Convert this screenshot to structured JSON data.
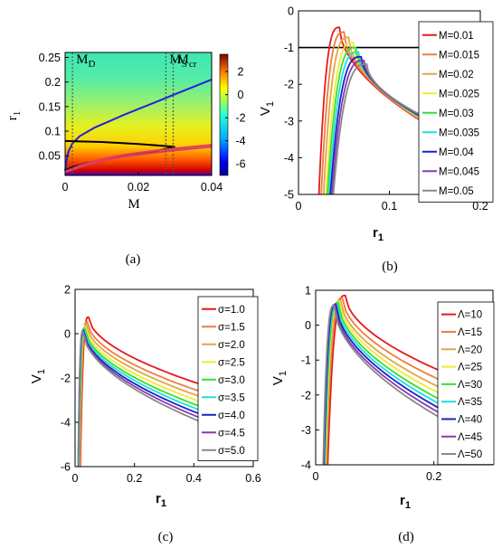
{
  "chart_data": [
    {
      "panel": "a",
      "caption": "(a)",
      "type": "heatmap",
      "xlabel": "M",
      "ylabel": "r",
      "ylabel_sub": "1",
      "xlim": [
        0,
        0.04
      ],
      "ylim": [
        0.01,
        0.26
      ],
      "xticks": [
        "0",
        "0.02",
        "0.04"
      ],
      "yticks": [
        "0.05",
        "0.1",
        "0.15",
        "0.2",
        "0.25"
      ],
      "colorbar": {
        "min": -7,
        "max": 3.5,
        "ticks": [
          "2",
          "0",
          "-2",
          "-4",
          "-6"
        ]
      },
      "vlines": [
        {
          "x": 0.002,
          "label": "M",
          "sub": "D"
        },
        {
          "x": 0.0275,
          "label": "M",
          "sub": "S"
        },
        {
          "x": 0.0295,
          "label": "M",
          "sub": "cr"
        }
      ],
      "curves": [
        {
          "color": "#2222dd",
          "points": [
            [
              0,
              0.02
            ],
            [
              0.0005,
              0.045
            ],
            [
              0.001,
              0.06
            ],
            [
              0.002,
              0.075
            ],
            [
              0.004,
              0.09
            ],
            [
              0.008,
              0.107
            ],
            [
              0.012,
              0.12
            ],
            [
              0.016,
              0.133
            ],
            [
              0.02,
              0.145
            ],
            [
              0.025,
              0.16
            ],
            [
              0.03,
              0.175
            ],
            [
              0.035,
              0.19
            ],
            [
              0.04,
              0.205
            ]
          ]
        },
        {
          "color": "#000000",
          "points": [
            [
              0,
              0.08
            ],
            [
              0.005,
              0.079
            ],
            [
              0.01,
              0.078
            ],
            [
              0.015,
              0.076
            ],
            [
              0.02,
              0.074
            ],
            [
              0.025,
              0.071
            ],
            [
              0.03,
              0.068
            ]
          ]
        },
        {
          "color": "#000000",
          "points": [
            [
              0,
              0.02
            ],
            [
              0.002,
              0.027
            ],
            [
              0.006,
              0.035
            ],
            [
              0.01,
              0.041
            ],
            [
              0.015,
              0.048
            ],
            [
              0.02,
              0.054
            ],
            [
              0.025,
              0.06
            ],
            [
              0.03,
              0.068
            ]
          ]
        },
        {
          "color": "#e03c5c",
          "points": [
            [
              0,
              0.018
            ],
            [
              0.004,
              0.03
            ],
            [
              0.01,
              0.043
            ],
            [
              0.016,
              0.052
            ],
            [
              0.022,
              0.058
            ],
            [
              0.03,
              0.065
            ],
            [
              0.04,
              0.072
            ]
          ]
        },
        {
          "color": "#e03c5c",
          "points": [
            [
              0,
              0.016
            ],
            [
              0.004,
              0.027
            ],
            [
              0.01,
              0.04
            ],
            [
              0.016,
              0.048
            ],
            [
              0.022,
              0.054
            ],
            [
              0.03,
              0.061
            ],
            [
              0.04,
              0.068
            ]
          ]
        }
      ]
    },
    {
      "panel": "b",
      "caption": "(b)",
      "type": "line",
      "xlabel": "r",
      "xlabel_sub": "1",
      "ylabel": "V",
      "ylabel_sub": "1",
      "xlim": [
        0,
        0.2
      ],
      "ylim": [
        -5,
        0
      ],
      "xticks": [
        "0",
        "0.1",
        "0.2"
      ],
      "yticks": [
        "0",
        "-1",
        "-2",
        "-3",
        "-4",
        "-5"
      ],
      "hline": -1,
      "series": [
        {
          "name": "M=0.01",
          "color": "#e8191c",
          "peak": [
            0.045,
            -0.45
          ]
        },
        {
          "name": "M=0.015",
          "color": "#ef7d3a",
          "peak": [
            0.05,
            -0.58
          ]
        },
        {
          "name": "M=0.02",
          "color": "#e2a54a",
          "peak": [
            0.055,
            -0.72
          ]
        },
        {
          "name": "M=0.025",
          "color": "#f2ea30",
          "peak": [
            0.06,
            -0.86
          ]
        },
        {
          "name": "M=0.03",
          "color": "#33e030",
          "peak": [
            0.063,
            -1.0
          ]
        },
        {
          "name": "M=0.035",
          "color": "#1edede",
          "peak": [
            0.066,
            -1.12
          ]
        },
        {
          "name": "M=0.04",
          "color": "#1622c8",
          "peak": [
            0.069,
            -1.25
          ]
        },
        {
          "name": "M=0.045",
          "color": "#8a3ab0",
          "peak": [
            0.072,
            -1.35
          ]
        },
        {
          "name": "M=0.05",
          "color": "#888888",
          "peak": [
            0.075,
            -1.45
          ]
        }
      ]
    },
    {
      "panel": "c",
      "caption": "(c)",
      "type": "line",
      "xlabel": "r",
      "xlabel_sub": "1",
      "ylabel": "V",
      "ylabel_sub": "1",
      "xlim": [
        0,
        0.6
      ],
      "ylim": [
        -6,
        2
      ],
      "xticks": [
        "0",
        "0.2",
        "0.4",
        "0.6"
      ],
      "yticks": [
        "2",
        "0",
        "-2",
        "-4",
        "-6"
      ],
      "series": [
        {
          "name": "σ=1.0",
          "color": "#e8191c",
          "peak": [
            0.045,
            0.75
          ],
          "end": -3.0
        },
        {
          "name": "σ=1.5",
          "color": "#ef7d3a",
          "peak": [
            0.04,
            0.55
          ],
          "end": -3.35
        },
        {
          "name": "σ=2.0",
          "color": "#e2a54a",
          "peak": [
            0.037,
            0.42
          ],
          "end": -3.6
        },
        {
          "name": "σ=2.5",
          "color": "#f2ea30",
          "peak": [
            0.034,
            0.32
          ],
          "end": -3.85
        },
        {
          "name": "σ=3.0",
          "color": "#33e030",
          "peak": [
            0.032,
            0.25
          ],
          "end": -4.1
        },
        {
          "name": "σ=3.5",
          "color": "#1edede",
          "peak": [
            0.03,
            0.2
          ],
          "end": -4.3
        },
        {
          "name": "σ=4.0",
          "color": "#1622c8",
          "peak": [
            0.028,
            0.15
          ],
          "end": -4.5
        },
        {
          "name": "σ=4.5",
          "color": "#8a3ab0",
          "peak": [
            0.027,
            0.12
          ],
          "end": -4.7
        },
        {
          "name": "σ=5.0",
          "color": "#888888",
          "peak": [
            0.026,
            0.1
          ],
          "end": -4.9
        }
      ]
    },
    {
      "panel": "d",
      "caption": "(d)",
      "type": "line",
      "xlabel": "r",
      "xlabel_sub": "1",
      "ylabel": "V",
      "ylabel_sub": "1",
      "xlim": [
        0,
        0.3
      ],
      "ylim": [
        -4,
        1
      ],
      "xticks": [
        "0",
        "0.2"
      ],
      "yticks": [
        "1",
        "0",
        "-1",
        "-2",
        "-3",
        "-4"
      ],
      "series": [
        {
          "name": "Λ=10",
          "color": "#e8191c",
          "peak": [
            0.05,
            0.85
          ],
          "end": -1.9
        },
        {
          "name": "Λ=15",
          "color": "#ef7d3a",
          "peak": [
            0.045,
            0.78
          ],
          "end": -2.2
        },
        {
          "name": "Λ=20",
          "color": "#e2a54a",
          "peak": [
            0.042,
            0.72
          ],
          "end": -2.45
        },
        {
          "name": "Λ=25",
          "color": "#f2ea30",
          "peak": [
            0.04,
            0.68
          ],
          "end": -2.65
        },
        {
          "name": "Λ=30",
          "color": "#33e030",
          "peak": [
            0.038,
            0.65
          ],
          "end": -2.85
        },
        {
          "name": "Λ=35",
          "color": "#1edede",
          "peak": [
            0.036,
            0.62
          ],
          "end": -3.0
        },
        {
          "name": "Λ=40",
          "color": "#1622c8",
          "peak": [
            0.034,
            0.6
          ],
          "end": -3.15
        },
        {
          "name": "Λ=45",
          "color": "#8a3ab0",
          "peak": [
            0.032,
            0.58
          ],
          "end": -3.3
        },
        {
          "name": "Λ=50",
          "color": "#888888",
          "peak": [
            0.031,
            0.56
          ],
          "end": -3.45
        }
      ]
    }
  ]
}
